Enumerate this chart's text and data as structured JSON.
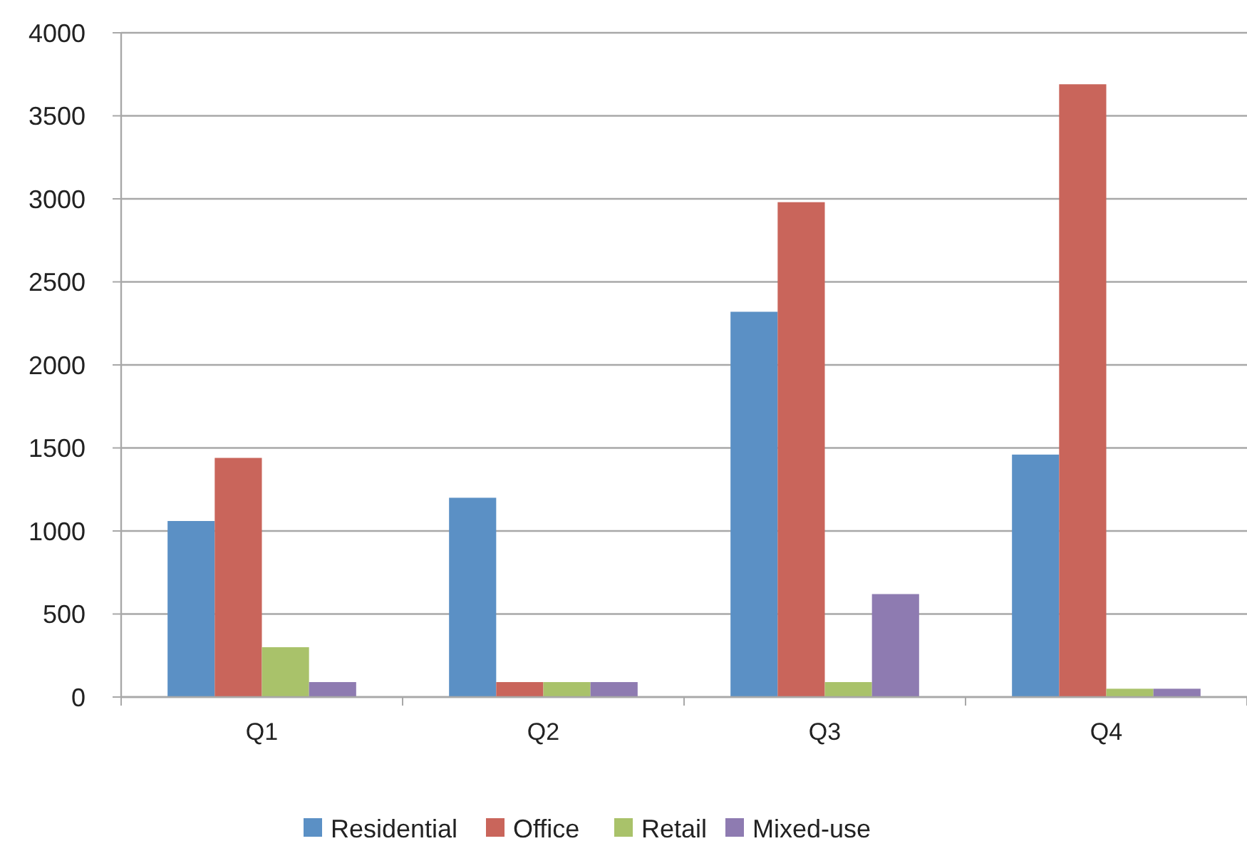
{
  "chart_data": {
    "type": "bar",
    "categories": [
      "Q1",
      "Q2",
      "Q3",
      "Q4"
    ],
    "series": [
      {
        "name": "Residential",
        "color": "#5b90c5",
        "values": [
          1060,
          1200,
          2320,
          1460
        ]
      },
      {
        "name": "Office",
        "color": "#c9655b",
        "values": [
          1440,
          90,
          2980,
          3690
        ]
      },
      {
        "name": "Retail",
        "color": "#a9c26a",
        "values": [
          300,
          90,
          90,
          50
        ]
      },
      {
        "name": "Mixed-use",
        "color": "#8e7bb1",
        "values": [
          90,
          90,
          620,
          50
        ]
      }
    ],
    "ylim": [
      0,
      4000
    ],
    "yticks": [
      0,
      500,
      1000,
      1500,
      2000,
      2500,
      3000,
      3500,
      4000
    ],
    "grid": "y",
    "legend": "bottom"
  }
}
